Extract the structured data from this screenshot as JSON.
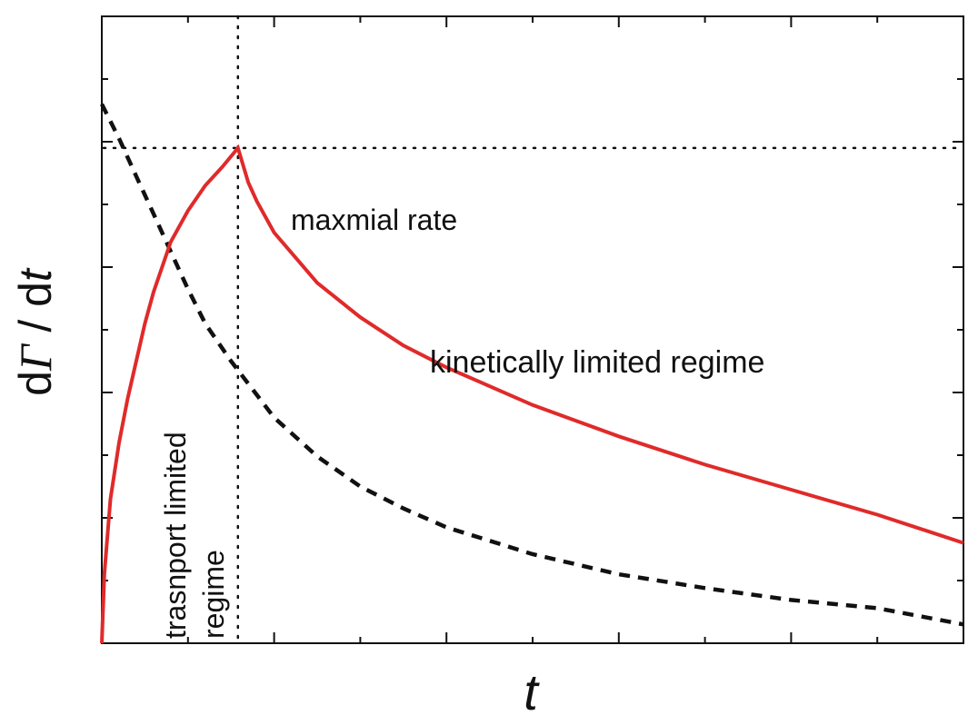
{
  "chart_data": {
    "type": "line",
    "title": "",
    "xlabel": "t",
    "ylabel_d1": "d",
    "ylabel_gamma": "Γ",
    "ylabel_mid": " / d",
    "ylabel_t": "t",
    "xlim": [
      0,
      100
    ],
    "ylim": [
      0,
      100
    ],
    "grid": false,
    "colors": {
      "red_curve": "#e02a2a",
      "dashed_curve": "#111111",
      "guides": "#111111",
      "axes": "#111111"
    },
    "series": [
      {
        "style": "solid",
        "color": "#e02a2a",
        "x": [
          0,
          0.3,
          1,
          2,
          3,
          4,
          5,
          6,
          8,
          10,
          12,
          14,
          15.8,
          17,
          18,
          20,
          25,
          30,
          35,
          40,
          50,
          60,
          70,
          80,
          90,
          100
        ],
        "y": [
          0,
          11,
          23,
          32,
          39,
          45,
          51,
          56,
          64,
          69,
          73,
          76,
          79,
          73.5,
          70.5,
          65.5,
          57.5,
          52,
          47.5,
          44,
          38,
          33,
          28.5,
          24.5,
          20.5,
          16
        ]
      },
      {
        "style": "dashed",
        "color": "#111111",
        "x": [
          0,
          2,
          4,
          6,
          8,
          10,
          12,
          15,
          20,
          25,
          30,
          35,
          40,
          50,
          60,
          70,
          80,
          90,
          100
        ],
        "y": [
          86,
          80.5,
          74.5,
          68.5,
          62.5,
          56.5,
          51,
          45,
          36,
          29.8,
          25,
          21.5,
          18.5,
          14.2,
          11,
          8.8,
          6.9,
          5.6,
          3
        ]
      }
    ],
    "guides": {
      "max_rate_y": 79,
      "regime_boundary_x": 15.8
    },
    "annotations": {
      "max_rate": "maxmial rate",
      "kinetic": "kinetically limited regime",
      "transport_line1": "trasnport limited",
      "transport_line2": "regime"
    }
  }
}
